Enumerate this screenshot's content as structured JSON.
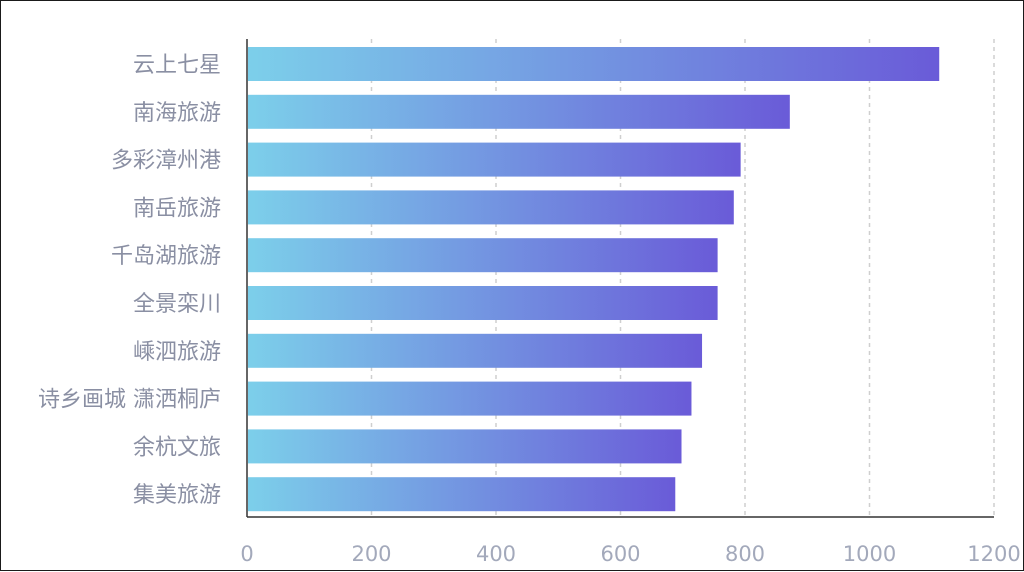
{
  "chart_data": {
    "type": "bar",
    "orientation": "horizontal",
    "categories": [
      "云上七星",
      "南海旅游",
      "多彩漳州港",
      "南岳旅游",
      "千岛湖旅游",
      "全景栾川",
      "嵊泗旅游",
      "诗乡画城 潇洒桐庐",
      "余杭文旅",
      "集美旅游"
    ],
    "values": [
      1112,
      872,
      793,
      782,
      756,
      756,
      731,
      714,
      698,
      688
    ],
    "xlim": [
      0,
      1200
    ],
    "xticks": [
      "0",
      "200",
      "400",
      "600",
      "800",
      "1000",
      "1200"
    ],
    "grid": "vertical dashed",
    "title": "",
    "xlabel": "",
    "ylabel": "",
    "colors": {
      "bar_start": "#7ccfea",
      "bar_end": "#6a5bd8",
      "grid": "#cfcfcf",
      "axis": "#333333",
      "category_text": "#8a8fa3",
      "tick_text": "#a3a9bb"
    }
  }
}
